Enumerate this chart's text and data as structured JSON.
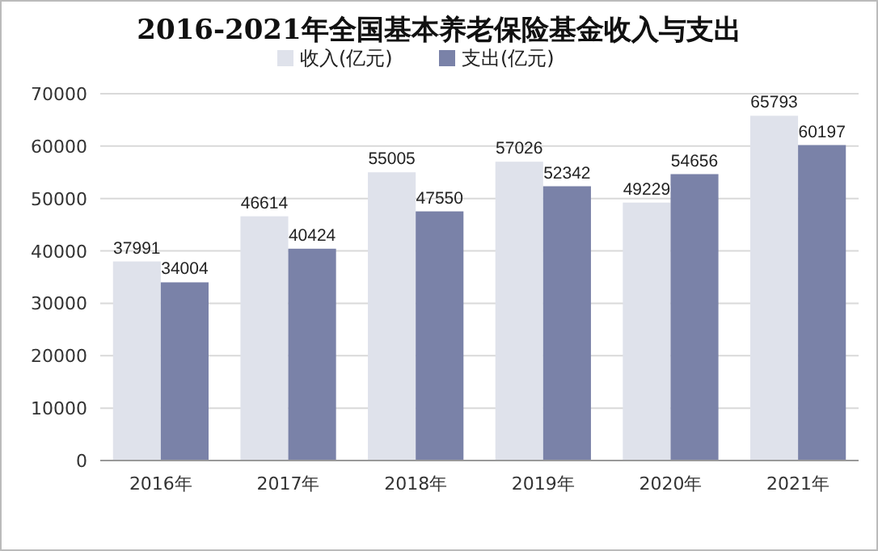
{
  "chart_data": {
    "type": "bar",
    "title": "2016-2021年全国基本养老保险基金收入与支出",
    "categories": [
      "2016年",
      "2017年",
      "2018年",
      "2019年",
      "2020年",
      "2021年"
    ],
    "series": [
      {
        "name": "收入(亿元)",
        "color": "#dfe2eb",
        "values": [
          37991,
          46614,
          55005,
          57026,
          49229,
          65793
        ]
      },
      {
        "name": "支出(亿元)",
        "color": "#7a82a8",
        "values": [
          34004,
          40424,
          47550,
          52342,
          54656,
          60197
        ]
      }
    ],
    "ylim": [
      0,
      70000
    ],
    "yticks": [
      0,
      10000,
      20000,
      30000,
      40000,
      50000,
      60000,
      70000
    ],
    "grid": "y",
    "legend": "top",
    "data_labels": true
  }
}
